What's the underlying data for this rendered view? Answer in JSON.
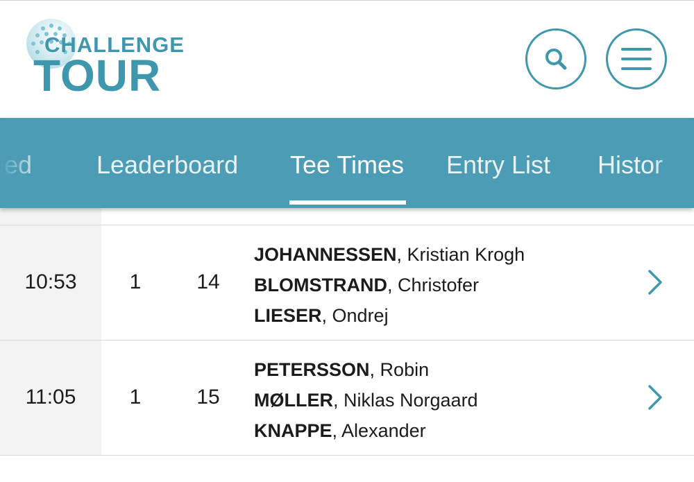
{
  "header": {
    "logo_top": "CHALLENGE",
    "logo_bottom": "TOUR",
    "search_icon": "search-icon",
    "menu_icon": "hamburger-menu-icon",
    "brand_color": "#3f97ad"
  },
  "tabs": [
    {
      "label": "Feed",
      "visible_label": "eed",
      "active": false
    },
    {
      "label": "Leaderboard",
      "visible_label": "Leaderboard",
      "active": false
    },
    {
      "label": "Tee Times",
      "visible_label": "Tee Times",
      "active": true
    },
    {
      "label": "Entry List",
      "visible_label": "Entry List",
      "active": false
    },
    {
      "label": "History",
      "visible_label": "Histor",
      "active": false
    }
  ],
  "tab_bar_color": "#4b9cb4",
  "rows": [
    {
      "time": "10:53",
      "round": "1",
      "tee": "14",
      "players": [
        {
          "last": "JOHANNESSEN",
          "first": ", Kristian Krogh"
        },
        {
          "last": "BLOMSTRAND",
          "first": ", Christofer"
        },
        {
          "last": "LIESER",
          "first": ", Ondrej"
        }
      ]
    },
    {
      "time": "11:05",
      "round": "1",
      "tee": "15",
      "players": [
        {
          "last": "PETERSSON",
          "first": ", Robin"
        },
        {
          "last": "MØLLER",
          "first": ", Niklas Norgaard"
        },
        {
          "last": "KNAPPE",
          "first": ", Alexander"
        }
      ]
    }
  ],
  "row_chevron_icon": "chevron-right-icon"
}
